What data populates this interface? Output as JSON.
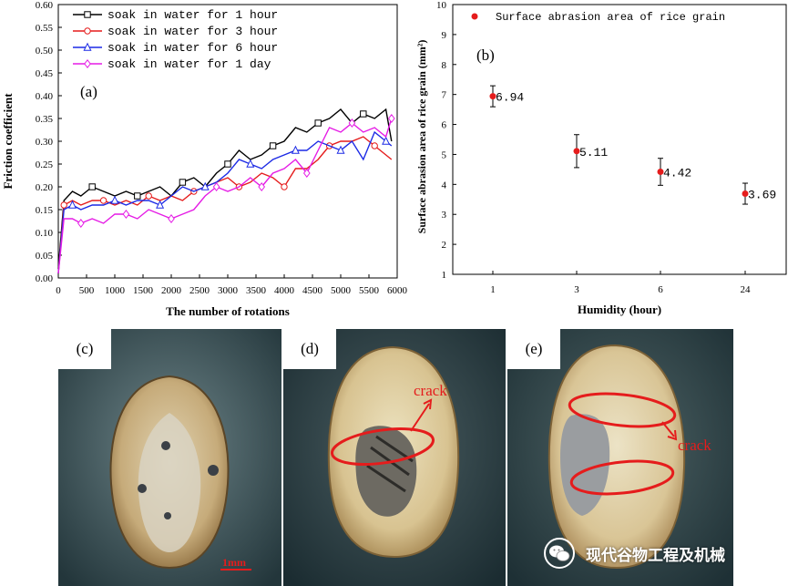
{
  "chart_data": [
    {
      "type": "line",
      "panel_label": "(a)",
      "xlabel": "The number of rotations",
      "ylabel": "Friction coefficient",
      "xlim": [
        0,
        6000
      ],
      "ylim": [
        0,
        0.6
      ],
      "xticks": [
        "0",
        "500",
        "1000",
        "1500",
        "2000",
        "2500",
        "3000",
        "3500",
        "4000",
        "4500",
        "5000",
        "5500",
        "6000"
      ],
      "yticks": [
        "0.00",
        "0.05",
        "0.10",
        "0.15",
        "0.20",
        "0.25",
        "0.30",
        "0.35",
        "0.40",
        "0.45",
        "0.50",
        "0.55",
        "0.60"
      ],
      "legend_position": "top-left",
      "series": [
        {
          "name": "soak in water for 1 hour",
          "color": "#000000",
          "marker": "square",
          "x": [
            0,
            100,
            250,
            400,
            600,
            800,
            1000,
            1200,
            1400,
            1600,
            1800,
            2000,
            2200,
            2400,
            2600,
            2800,
            3000,
            3200,
            3400,
            3600,
            3800,
            4000,
            4200,
            4400,
            4600,
            4800,
            5000,
            5200,
            5400,
            5600,
            5800,
            5900
          ],
          "y": [
            0.02,
            0.17,
            0.19,
            0.18,
            0.2,
            0.19,
            0.18,
            0.19,
            0.18,
            0.19,
            0.2,
            0.18,
            0.21,
            0.22,
            0.2,
            0.23,
            0.25,
            0.28,
            0.26,
            0.27,
            0.29,
            0.3,
            0.33,
            0.32,
            0.34,
            0.35,
            0.37,
            0.34,
            0.36,
            0.35,
            0.37,
            0.3
          ]
        },
        {
          "name": "soak in water for 3 hour",
          "color": "#e51c1c",
          "marker": "circle",
          "x": [
            0,
            100,
            250,
            400,
            600,
            800,
            1000,
            1200,
            1400,
            1600,
            1800,
            2000,
            2200,
            2400,
            2600,
            2800,
            3000,
            3200,
            3400,
            3600,
            3800,
            4000,
            4200,
            4400,
            4600,
            4800,
            5000,
            5200,
            5400,
            5600,
            5800,
            5900
          ],
          "y": [
            0.01,
            0.16,
            0.17,
            0.16,
            0.17,
            0.17,
            0.16,
            0.17,
            0.16,
            0.18,
            0.17,
            0.18,
            0.17,
            0.19,
            0.2,
            0.21,
            0.22,
            0.2,
            0.21,
            0.23,
            0.22,
            0.2,
            0.24,
            0.24,
            0.26,
            0.29,
            0.3,
            0.3,
            0.31,
            0.29,
            0.27,
            0.26
          ]
        },
        {
          "name": "soak in water for 6 hour",
          "color": "#1c2ae5",
          "marker": "triangle",
          "x": [
            0,
            100,
            250,
            400,
            600,
            800,
            1000,
            1200,
            1400,
            1600,
            1800,
            2000,
            2200,
            2400,
            2600,
            2800,
            3000,
            3200,
            3400,
            3600,
            3800,
            4000,
            4200,
            4400,
            4600,
            4800,
            5000,
            5200,
            5400,
            5600,
            5800,
            5900
          ],
          "y": [
            0.01,
            0.15,
            0.16,
            0.15,
            0.16,
            0.16,
            0.17,
            0.16,
            0.17,
            0.17,
            0.16,
            0.18,
            0.2,
            0.19,
            0.2,
            0.21,
            0.23,
            0.26,
            0.25,
            0.24,
            0.26,
            0.27,
            0.28,
            0.28,
            0.3,
            0.29,
            0.28,
            0.3,
            0.26,
            0.32,
            0.3,
            0.29
          ]
        },
        {
          "name": "soak in water for 1 day",
          "color": "#e51ce5",
          "marker": "diamond",
          "x": [
            0,
            100,
            250,
            400,
            600,
            800,
            1000,
            1200,
            1400,
            1600,
            1800,
            2000,
            2200,
            2400,
            2600,
            2800,
            3000,
            3200,
            3400,
            3600,
            3800,
            4000,
            4200,
            4400,
            4600,
            4800,
            5000,
            5200,
            5400,
            5600,
            5800,
            5900
          ],
          "y": [
            0.01,
            0.13,
            0.13,
            0.12,
            0.13,
            0.12,
            0.14,
            0.14,
            0.13,
            0.15,
            0.14,
            0.13,
            0.14,
            0.15,
            0.18,
            0.2,
            0.19,
            0.2,
            0.22,
            0.2,
            0.23,
            0.24,
            0.26,
            0.23,
            0.28,
            0.33,
            0.32,
            0.34,
            0.32,
            0.33,
            0.31,
            0.35
          ]
        }
      ]
    },
    {
      "type": "scatter",
      "panel_label": "(b)",
      "xlabel": "Humidity (hour)",
      "ylabel": "Surface abrasion area of rice grain (mm²)",
      "categories": [
        "1",
        "3",
        "6",
        "24"
      ],
      "ylim": [
        1,
        10
      ],
      "yticks": [
        "1",
        "2",
        "3",
        "4",
        "5",
        "6",
        "7",
        "8",
        "9",
        "10"
      ],
      "legend_position": "top-left",
      "series": [
        {
          "name": "Surface abrasion area of rice grain",
          "color": "#e51c1c",
          "values": [
            6.94,
            5.11,
            4.42,
            3.69
          ],
          "errors": [
            0.35,
            0.55,
            0.45,
            0.35
          ],
          "labels": [
            "6.94",
            "5.11",
            "4.42",
            "3.69"
          ]
        }
      ]
    }
  ],
  "photos": {
    "c": {
      "label": "(c)",
      "scale_bar": "1mm"
    },
    "d": {
      "label": "(d)",
      "annotation": "crack"
    },
    "e": {
      "label": "(e)",
      "annotation": "crack"
    }
  },
  "watermark": {
    "text": "现代谷物工程及机械"
  }
}
